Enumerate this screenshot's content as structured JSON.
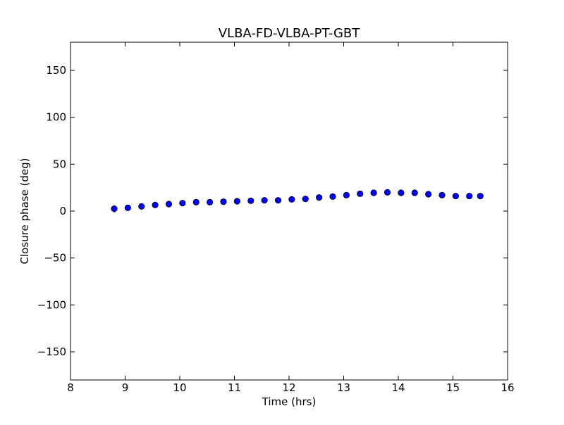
{
  "chart_data": {
    "type": "scatter",
    "title": "VLBA-FD-VLBA-PT-GBT",
    "xlabel": "Time (hrs)",
    "ylabel": "Closure phase (deg)",
    "xlim": [
      8,
      16
    ],
    "ylim": [
      -180,
      180
    ],
    "xticks": [
      8,
      9,
      10,
      11,
      12,
      13,
      14,
      15,
      16
    ],
    "xtick_labels": [
      "8",
      "9",
      "10",
      "11",
      "12",
      "13",
      "14",
      "15",
      "16"
    ],
    "yticks": [
      150,
      100,
      50,
      0,
      -50,
      -100,
      -150
    ],
    "ytick_labels": [
      "150",
      "100",
      "50",
      "0",
      "−50",
      "−100",
      "−150"
    ],
    "grid": false,
    "marker_color": "#0000ff",
    "marker_edge_color": "#000000",
    "series": [
      {
        "x": [
          8.8,
          9.05,
          9.3,
          9.55,
          9.8,
          10.05,
          10.3,
          10.55,
          10.8,
          11.05,
          11.3,
          11.55,
          11.8,
          12.05,
          12.3,
          12.55,
          12.8,
          13.05,
          13.3,
          13.55,
          13.8,
          14.05,
          14.3,
          14.55,
          14.8,
          15.05,
          15.3,
          15.5
        ],
        "y": [
          2.5,
          3.5,
          5.0,
          6.5,
          7.5,
          8.5,
          9.5,
          9.5,
          10.0,
          10.5,
          11.0,
          11.5,
          11.5,
          12.5,
          13.0,
          14.5,
          15.5,
          17.0,
          18.5,
          19.5,
          20.0,
          19.5,
          19.5,
          18.0,
          17.0,
          16.0,
          16.0,
          16.0
        ],
        "yerr": [
          4.0,
          2.0,
          1.5,
          1.5,
          1.5,
          1.5,
          1.5,
          1.5,
          1.5,
          1.5,
          1.5,
          1.5,
          1.5,
          1.5,
          1.5,
          1.5,
          1.5,
          1.5,
          1.5,
          1.5,
          1.5,
          1.5,
          1.5,
          1.5,
          1.5,
          1.5,
          1.5,
          1.5
        ]
      }
    ]
  }
}
